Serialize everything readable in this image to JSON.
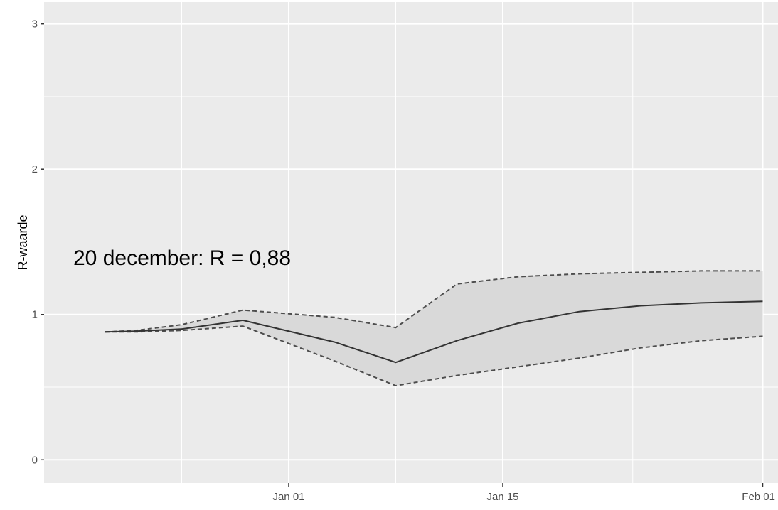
{
  "chart_data": {
    "type": "line",
    "title": "",
    "xlabel": "",
    "ylabel": "R-waarde",
    "annotation": "20 december: R = 0,88",
    "x": [
      "2020-12-20",
      "2020-12-22",
      "2020-12-25",
      "2020-12-29",
      "2021-01-04",
      "2021-01-08",
      "2021-01-12",
      "2021-01-16",
      "2021-01-20",
      "2021-01-24",
      "2021-01-28",
      "2021-02-01"
    ],
    "series": [
      {
        "role": "estimate",
        "style": "solid",
        "values": [
          0.88,
          0.885,
          0.9,
          0.96,
          0.81,
          0.67,
          0.82,
          0.94,
          1.02,
          1.06,
          1.08,
          1.09
        ]
      },
      {
        "role": "upper",
        "style": "dashed",
        "values": [
          0.88,
          0.89,
          0.93,
          1.03,
          0.98,
          0.91,
          1.21,
          1.26,
          1.28,
          1.29,
          1.3,
          1.3
        ]
      },
      {
        "role": "lower",
        "style": "dashed",
        "values": [
          0.88,
          0.88,
          0.89,
          0.92,
          0.68,
          0.51,
          0.58,
          0.64,
          0.7,
          0.77,
          0.82,
          0.85
        ]
      }
    ],
    "xticks": [
      {
        "date": "2021-01-01",
        "label": "Jan 01"
      },
      {
        "date": "2021-01-15",
        "label": "Jan 15"
      },
      {
        "date": "2021-02-01",
        "label": "Feb 01"
      }
    ],
    "yticks": [
      0,
      1,
      2,
      3
    ],
    "xlim": [
      "2020-12-16",
      "2021-02-02"
    ],
    "ylim": [
      -0.16,
      3.15
    ],
    "grid": true,
    "colors": {
      "panel": "#ebebeb",
      "grid": "#ffffff",
      "ribbon": "#d9d9d9",
      "line": "#333333",
      "bound": "#4d4d4d"
    }
  }
}
